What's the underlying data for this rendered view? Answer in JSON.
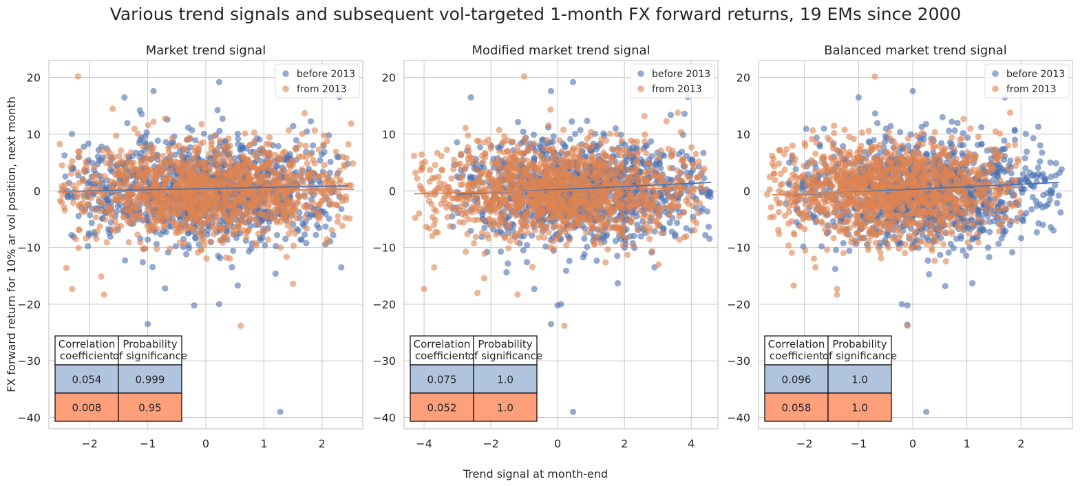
{
  "figure": {
    "title": "Various trend signals and subsequent vol-targeted 1-month FX forward returns, 19 EMs since 2000",
    "ylabel": "FX forward return for 10% ar vol position, next month",
    "xlabel": "Trend signal at month-end"
  },
  "colors": {
    "before": "#4c72b0",
    "from": "#dd8452",
    "table_before": "#b0c4de",
    "table_from": "#ffa07a",
    "grid": "#cccccc"
  },
  "chart_data": [
    {
      "type": "scatter",
      "title": "Market trend signal",
      "xlim": [
        -2.7,
        2.7
      ],
      "ylim": [
        -42,
        23
      ],
      "xticks": [
        -2,
        -1,
        0,
        1,
        2
      ],
      "xtick_labels": [
        "−2",
        "−1",
        "0",
        "1",
        "2"
      ],
      "yticks": [
        20,
        10,
        0,
        -10,
        -20,
        -30,
        -40
      ],
      "ytick_labels": [
        "20",
        "10",
        "0",
        "−10",
        "−20",
        "−30",
        "−40"
      ],
      "grid": true,
      "legend_position": "top-right",
      "series": [
        {
          "name": "before 2013",
          "n_points": 1200,
          "x_range": [
            -2.45,
            2.45
          ],
          "y_sd": 4.5,
          "regression": {
            "x": [
              -2.45,
              2.45
            ],
            "y": [
              -0.1,
              0.9
            ]
          },
          "outliers": [
            [
              -1.0,
              -23.5
            ],
            [
              1.28,
              -39.0
            ],
            [
              0.23,
              19.2
            ],
            [
              -0.9,
              17.6
            ],
            [
              -1.4,
              16.5
            ],
            [
              -0.2,
              -20.2
            ],
            [
              0.23,
              -20.0
            ],
            [
              0.55,
              -16.7
            ],
            [
              -0.7,
              -17.2
            ],
            [
              2.3,
              16.6
            ],
            [
              2.33,
              -13.5
            ],
            [
              1.2,
              -14.6
            ]
          ]
        },
        {
          "name": "from 2013",
          "n_points": 1300,
          "x_range": [
            -2.55,
            2.55
          ],
          "y_sd": 4.3,
          "regression": {
            "x": [
              -2.55,
              2.55
            ],
            "y": [
              -0.2,
              0.3
            ]
          },
          "outliers": [
            [
              -2.2,
              20.2
            ],
            [
              0.6,
              -23.8
            ],
            [
              -1.75,
              -18.3
            ],
            [
              -2.3,
              -17.3
            ],
            [
              1.5,
              -16.4
            ],
            [
              -1.8,
              -15.1
            ],
            [
              -1.6,
              14.5
            ],
            [
              -2.4,
              -13.6
            ],
            [
              1.7,
              13.7
            ],
            [
              -0.9,
              12.2
            ],
            [
              2.5,
              11.9
            ]
          ]
        }
      ],
      "table": {
        "headers": [
          "Correlation\ncoefficient",
          "Probability\nof significance"
        ],
        "rows": [
          [
            "0.054",
            "0.999"
          ],
          [
            "0.008",
            "0.95"
          ]
        ]
      }
    },
    {
      "type": "scatter",
      "title": "Modified market trend signal",
      "xlim": [
        -4.6,
        4.8
      ],
      "ylim": [
        -42,
        23
      ],
      "xticks": [
        -4,
        -2,
        0,
        2,
        4
      ],
      "xtick_labels": [
        "−4",
        "−2",
        "0",
        "2",
        "4"
      ],
      "yticks": [
        20,
        10,
        0,
        -10,
        -20,
        -30,
        -40
      ],
      "ytick_labels": [
        "20",
        "10",
        "0",
        "−10",
        "−20",
        "−30",
        "−40"
      ],
      "grid": true,
      "legend_position": "top-right",
      "series": [
        {
          "name": "before 2013",
          "n_points": 1200,
          "x_range": [
            -3.2,
            4.6
          ],
          "y_sd": 4.5,
          "regression": {
            "x": [
              -3.0,
              4.6
            ],
            "y": [
              -0.6,
              1.5
            ]
          },
          "outliers": [
            [
              0.46,
              -39.0
            ],
            [
              -0.2,
              -23.5
            ],
            [
              0.46,
              19.2
            ],
            [
              -2.6,
              16.5
            ],
            [
              -0.2,
              17.6
            ],
            [
              0.0,
              -20.2
            ],
            [
              0.1,
              -20.0
            ],
            [
              1.8,
              -16.3
            ],
            [
              -0.7,
              -17.3
            ],
            [
              3.9,
              16.6
            ],
            [
              2.9,
              -13.5
            ],
            [
              3.8,
              13.6
            ]
          ]
        },
        {
          "name": "from 2013",
          "n_points": 1300,
          "x_range": [
            -4.3,
            4.4
          ],
          "y_sd": 4.3,
          "regression": {
            "x": [
              -4.3,
              4.4
            ],
            "y": [
              -0.5,
              0.6
            ]
          },
          "outliers": [
            [
              -1.0,
              20.2
            ],
            [
              0.2,
              -23.8
            ],
            [
              -4.0,
              -17.3
            ],
            [
              -2.2,
              -15.4
            ],
            [
              -2.4,
              -18.0
            ],
            [
              -1.2,
              -18.3
            ],
            [
              3.6,
              13.8
            ],
            [
              -3.7,
              -13.5
            ],
            [
              2.6,
              13.2
            ],
            [
              -4.3,
              6.2
            ]
          ]
        }
      ],
      "table": {
        "headers": [
          "Correlation\ncoefficient",
          "Probability\nof significance"
        ],
        "rows": [
          [
            "0.075",
            "1.0"
          ],
          [
            "0.052",
            "1.0"
          ]
        ]
      }
    },
    {
      "type": "scatter",
      "title": "Balanced market trend signal",
      "xlim": [
        -2.85,
        2.95
      ],
      "ylim": [
        -42,
        23
      ],
      "xticks": [
        -2,
        -1,
        0,
        1,
        2
      ],
      "xtick_labels": [
        "−2",
        "−1",
        "0",
        "1",
        "2"
      ],
      "yticks": [
        20,
        10,
        0,
        -10,
        -20,
        -30,
        -40
      ],
      "ytick_labels": [
        "20",
        "10",
        "0",
        "−10",
        "−20",
        "−30",
        "−40"
      ],
      "grid": true,
      "legend_position": "top-right",
      "series": [
        {
          "name": "before 2013",
          "n_points": 1200,
          "x_range": [
            -2.35,
            2.75
          ],
          "y_sd": 4.5,
          "regression": {
            "x": [
              -2.2,
              2.7
            ],
            "y": [
              -0.7,
              1.5
            ]
          },
          "outliers": [
            [
              0.25,
              -39.0
            ],
            [
              -0.1,
              -23.6
            ],
            [
              -1.0,
              16.5
            ],
            [
              -0.0,
              17.6
            ],
            [
              1.7,
              16.5
            ],
            [
              -0.1,
              -20.2
            ],
            [
              -0.2,
              -20.0
            ],
            [
              1.1,
              -16.3
            ],
            [
              0.6,
              -16.8
            ],
            [
              2.6,
              -7.0
            ],
            [
              2.75,
              3.8
            ]
          ]
        },
        {
          "name": "from 2013",
          "n_points": 1300,
          "x_range": [
            -2.7,
            2.0
          ],
          "y_sd": 4.3,
          "regression": {
            "x": [
              -2.6,
              2.0
            ],
            "y": [
              -0.7,
              0.6
            ]
          },
          "outliers": [
            [
              -0.7,
              20.2
            ],
            [
              -0.1,
              -23.8
            ],
            [
              -1.4,
              -17.3
            ],
            [
              -1.4,
              -18.3
            ],
            [
              -2.2,
              -16.7
            ],
            [
              -2.6,
              6.2
            ],
            [
              1.8,
              13.8
            ],
            [
              -1.8,
              -13.5
            ]
          ]
        }
      ],
      "table": {
        "headers": [
          "Correlation\ncoefficient",
          "Probability\nof significance"
        ],
        "rows": [
          [
            "0.096",
            "1.0"
          ],
          [
            "0.058",
            "1.0"
          ]
        ]
      }
    }
  ]
}
